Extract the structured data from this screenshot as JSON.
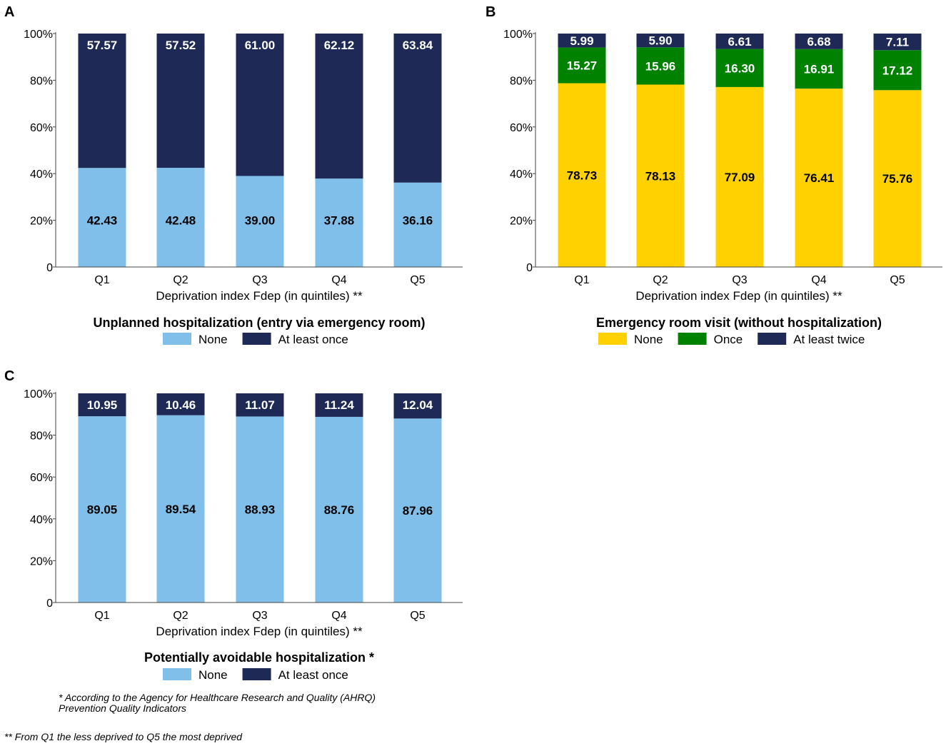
{
  "colors": {
    "light_blue": "#7FBFE9",
    "navy": "#1E2A55",
    "yellow": "#FFD100",
    "green": "#008200"
  },
  "chart_data": [
    {
      "type": "bar",
      "stacked": true,
      "panel_label": "A",
      "title": "Unplanned hospitalization (entry via emergency room)",
      "xlabel": "Deprivation index Fdep (in quintiles) **",
      "ylabel": "",
      "categories": [
        "Q1",
        "Q2",
        "Q3",
        "Q4",
        "Q5"
      ],
      "ylim": [
        0,
        100
      ],
      "y_ticks": [
        "0",
        "20%",
        "40%",
        "60%",
        "80%",
        "100%"
      ],
      "series": [
        {
          "name": "None",
          "color": "#7FBFE9",
          "label_color": "#000000",
          "values": [
            42.43,
            42.48,
            39.0,
            37.88,
            36.16
          ],
          "labels": [
            "42.43",
            "42.48",
            "39.00",
            "37.88",
            "36.16"
          ]
        },
        {
          "name": "At least once",
          "color": "#1E2A55",
          "label_color": "#ffffff",
          "values": [
            57.57,
            57.52,
            61.0,
            62.12,
            63.84
          ],
          "labels": [
            "57.57",
            "57.52",
            "61.00",
            "62.12",
            "63.84"
          ]
        }
      ]
    },
    {
      "type": "bar",
      "stacked": true,
      "panel_label": "B",
      "title": "Emergency room visit (without hospitalization)",
      "xlabel": "Deprivation index Fdep (in quintiles) **",
      "ylabel": "",
      "categories": [
        "Q1",
        "Q2",
        "Q3",
        "Q4",
        "Q5"
      ],
      "ylim": [
        0,
        100
      ],
      "y_ticks": [
        "0",
        "20%",
        "40%",
        "60%",
        "80%",
        "100%"
      ],
      "series": [
        {
          "name": "None",
          "color": "#FFD100",
          "label_color": "#000000",
          "values": [
            78.73,
            78.13,
            77.09,
            76.41,
            75.76
          ],
          "labels": [
            "78.73",
            "78.13",
            "77.09",
            "76.41",
            "75.76"
          ]
        },
        {
          "name": "Once",
          "color": "#008200",
          "label_color": "#ffffff",
          "values": [
            15.27,
            15.96,
            16.3,
            16.91,
            17.12
          ],
          "labels": [
            "15.27",
            "15.96",
            "16.30",
            "16.91",
            "17.12"
          ]
        },
        {
          "name": "At least twice",
          "color": "#1E2A55",
          "label_color": "#ffffff",
          "values": [
            5.99,
            5.9,
            6.61,
            6.68,
            7.11
          ],
          "labels": [
            "5.99",
            "5.90",
            "6.61",
            "6.68",
            "7.11"
          ]
        }
      ]
    },
    {
      "type": "bar",
      "stacked": true,
      "panel_label": "C",
      "title": "Potentially avoidable hospitalization *",
      "xlabel": "Deprivation index Fdep (in quintiles) **",
      "ylabel": "",
      "categories": [
        "Q1",
        "Q2",
        "Q3",
        "Q4",
        "Q5"
      ],
      "ylim": [
        0,
        100
      ],
      "y_ticks": [
        "0",
        "20%",
        "40%",
        "60%",
        "80%",
        "100%"
      ],
      "series": [
        {
          "name": "None",
          "color": "#7FBFE9",
          "label_color": "#000000",
          "values": [
            89.05,
            89.54,
            88.93,
            88.76,
            87.96
          ],
          "labels": [
            "89.05",
            "89.54",
            "88.93",
            "88.76",
            "87.96"
          ]
        },
        {
          "name": "At least once",
          "color": "#1E2A55",
          "label_color": "#ffffff",
          "values": [
            10.95,
            10.46,
            11.07,
            11.24,
            12.04
          ],
          "labels": [
            "10.95",
            "10.46",
            "11.07",
            "11.24",
            "12.04"
          ]
        }
      ]
    }
  ],
  "footnotes": {
    "ahrq_line1": "* According to the Agency for Healthcare Research and Quality (AHRQ)",
    "ahrq_line2": "Prevention Quality Indicators",
    "fdep": "** From Q1 the less deprived to Q5 the most deprived"
  }
}
